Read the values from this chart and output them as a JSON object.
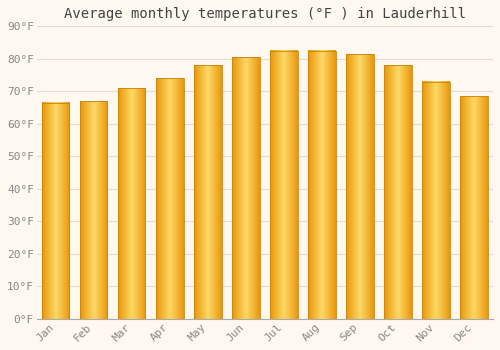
{
  "title": "Average monthly temperatures (°F ) in Lauderhill",
  "months": [
    "Jan",
    "Feb",
    "Mar",
    "Apr",
    "May",
    "Jun",
    "Jul",
    "Aug",
    "Sep",
    "Oct",
    "Nov",
    "Dec"
  ],
  "values": [
    66.5,
    67.0,
    71.0,
    74.0,
    78.0,
    80.5,
    82.5,
    82.5,
    81.5,
    78.0,
    73.0,
    68.5
  ],
  "bar_color_center": "#FFD966",
  "bar_color_edge": "#E8960A",
  "background_color": "#FFF8F0",
  "plot_bg_color": "#FFF8F0",
  "ylim": [
    0,
    90
  ],
  "ytick_step": 10,
  "grid_color": "#E0DDD8",
  "title_fontsize": 10,
  "tick_fontsize": 8,
  "tick_label_color": "#888888",
  "title_color": "#444444"
}
